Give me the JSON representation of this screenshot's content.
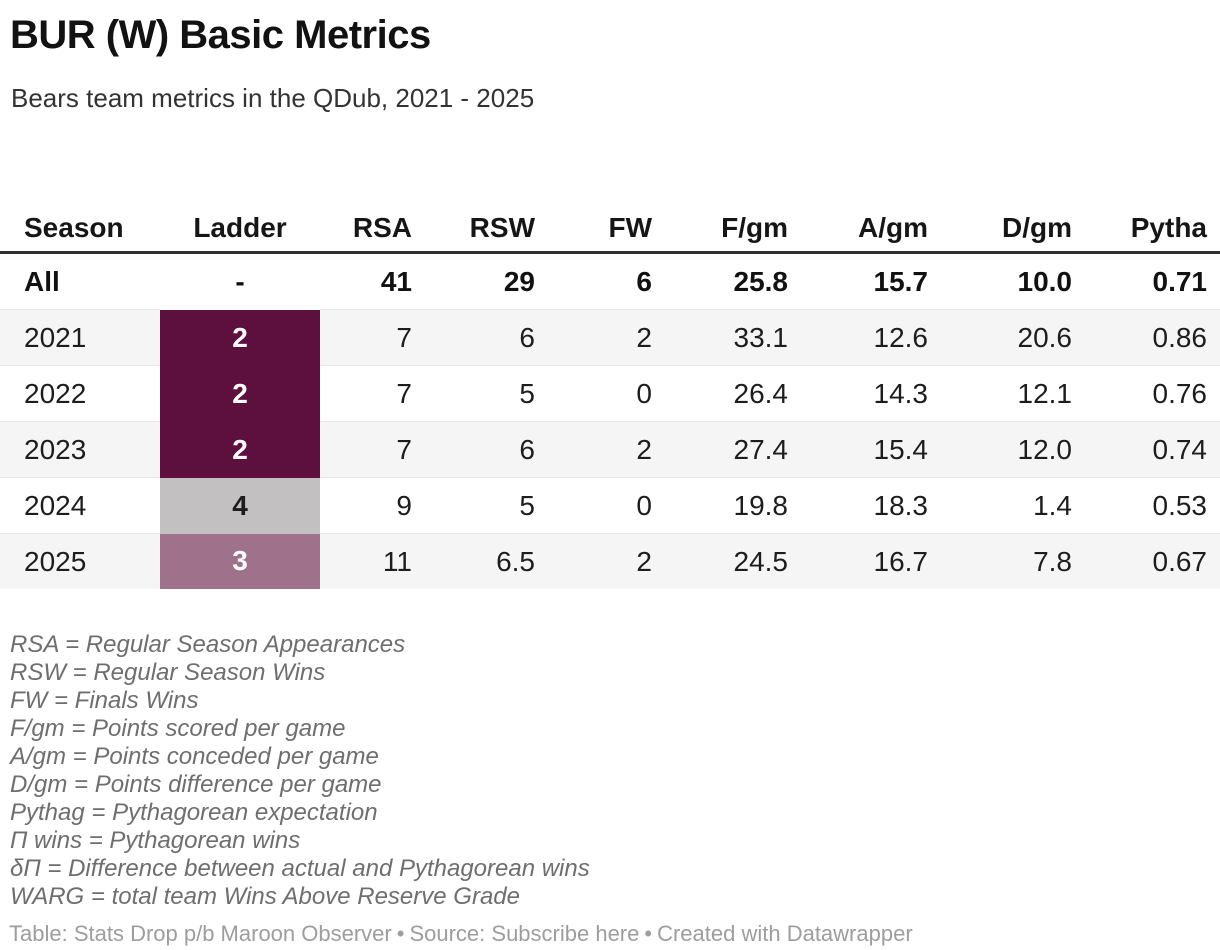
{
  "header": {
    "title": "BUR (W) Basic Metrics",
    "subtitle": "Bears team metrics in the QDub, 2021 - 2025"
  },
  "chart_data": {
    "type": "table",
    "title": "BUR (W) Basic Metrics",
    "subtitle": "Bears team metrics in the QDub, 2021 - 2025",
    "columns": [
      {
        "label": "Season",
        "align": "left"
      },
      {
        "label": "Ladder",
        "align": "center"
      },
      {
        "label": "RSA",
        "align": "right"
      },
      {
        "label": "RSW",
        "align": "right"
      },
      {
        "label": "FW",
        "align": "right"
      },
      {
        "label": "F/gm",
        "align": "right"
      },
      {
        "label": "A/gm",
        "align": "right"
      },
      {
        "label": "D/gm",
        "align": "right"
      },
      {
        "label": "Pytha",
        "align": "right"
      }
    ],
    "rows": [
      {
        "season": "All",
        "ladder": "-",
        "rsa": "41",
        "rsw": "29",
        "fw": "6",
        "f_gm": "25.8",
        "a_gm": "15.7",
        "d_gm": "10.0",
        "pythag": "0.71",
        "total": true,
        "striped": false,
        "ladder_bg": "",
        "ladder_text": ""
      },
      {
        "season": "2021",
        "ladder": "2",
        "rsa": "7",
        "rsw": "6",
        "fw": "2",
        "f_gm": "33.1",
        "a_gm": "12.6",
        "d_gm": "20.6",
        "pythag": "0.86",
        "total": false,
        "striped": true,
        "ladder_bg": "#5d103e",
        "ladder_text": "#ffffff"
      },
      {
        "season": "2022",
        "ladder": "2",
        "rsa": "7",
        "rsw": "5",
        "fw": "0",
        "f_gm": "26.4",
        "a_gm": "14.3",
        "d_gm": "12.1",
        "pythag": "0.76",
        "total": false,
        "striped": false,
        "ladder_bg": "#5d103e",
        "ladder_text": "#ffffff"
      },
      {
        "season": "2023",
        "ladder": "2",
        "rsa": "7",
        "rsw": "6",
        "fw": "2",
        "f_gm": "27.4",
        "a_gm": "15.4",
        "d_gm": "12.0",
        "pythag": "0.74",
        "total": false,
        "striped": true,
        "ladder_bg": "#5d103e",
        "ladder_text": "#ffffff"
      },
      {
        "season": "2024",
        "ladder": "4",
        "rsa": "9",
        "rsw": "5",
        "fw": "0",
        "f_gm": "19.8",
        "a_gm": "18.3",
        "d_gm": "1.4",
        "pythag": "0.53",
        "total": false,
        "striped": false,
        "ladder_bg": "#c3c0c1",
        "ladder_text": "#1d1d1d"
      },
      {
        "season": "2025",
        "ladder": "3",
        "rsa": "11",
        "rsw": "6.5",
        "fw": "2",
        "f_gm": "24.5",
        "a_gm": "16.7",
        "d_gm": "7.8",
        "pythag": "0.67",
        "total": false,
        "striped": true,
        "ladder_bg": "#a0718a",
        "ladder_text": "#ffffff"
      }
    ]
  },
  "footnotes": [
    "RSA = Regular Season Appearances",
    "RSW = Regular Season Wins",
    "FW = Finals Wins",
    "F/gm = Points scored per game",
    "A/gm = Points conceded per game",
    "D/gm = Points difference per game",
    "Pythag = Pythagorean expectation",
    "Π wins = Pythagorean wins",
    "δΠ = Difference between actual and Pythagorean wins",
    "WARG = total team Wins Above Reserve Grade"
  ],
  "footer": {
    "table_credit": "Table: Stats Drop p/b Maroon Observer",
    "separator": "•",
    "source_label": "Source:",
    "source_link_label": "Subscribe here",
    "created_label": "Created with Datawrapper"
  },
  "colors": {
    "ladder_rank2_maroon": "#5d103e",
    "ladder_rank3_mauve": "#a0718a",
    "ladder_rank4_gray": "#c3c0c1",
    "row_stripe": "#f5f5f5",
    "header_rule": "#2f2f2f",
    "row_rule": "#e7e7e7"
  }
}
